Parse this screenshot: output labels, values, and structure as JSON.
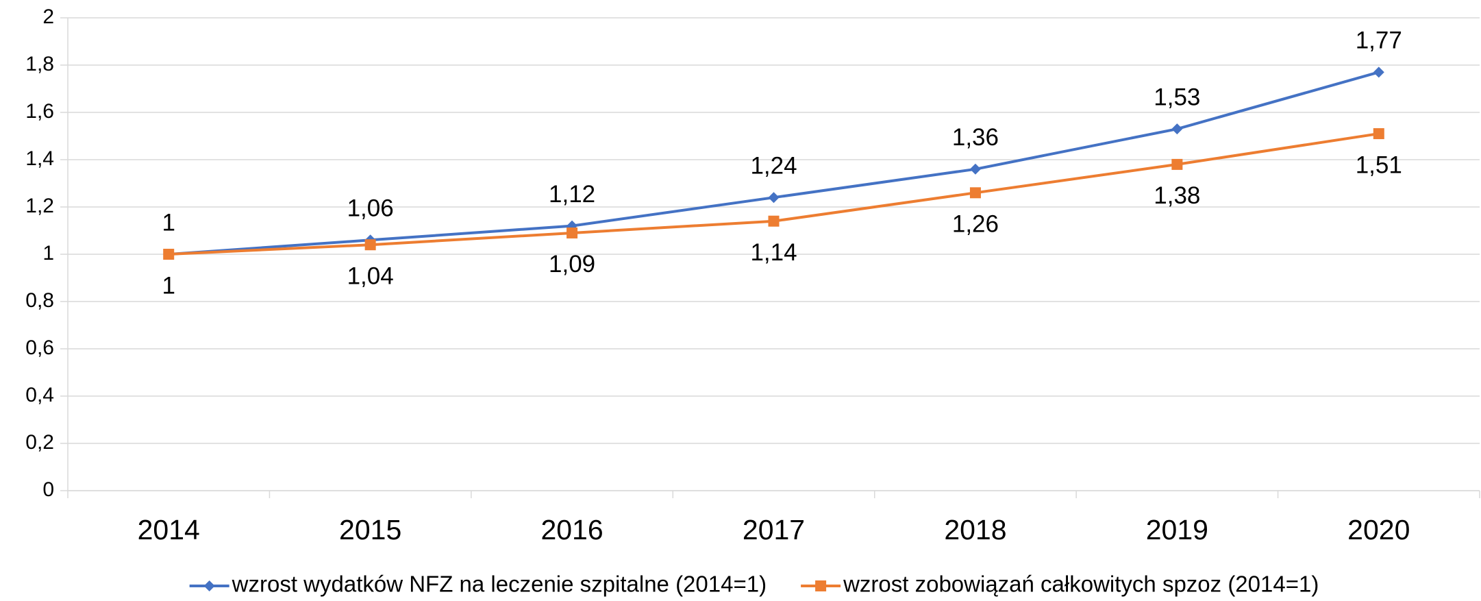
{
  "chart_data": {
    "type": "line",
    "categories": [
      "2014",
      "2015",
      "2016",
      "2017",
      "2018",
      "2019",
      "2020"
    ],
    "series": [
      {
        "name": "wzrost wydatków NFZ na leczenie szpitalne (2014=1)",
        "color": "#4472c4",
        "marker": "diamond",
        "values": [
          1,
          1.06,
          1.12,
          1.24,
          1.36,
          1.53,
          1.77
        ],
        "value_labels": [
          "1",
          "1,06",
          "1,12",
          "1,24",
          "1,36",
          "1,53",
          "1,77"
        ]
      },
      {
        "name": "wzrost zobowiązań całkowitych spzoz (2014=1)",
        "color": "#ed7d31",
        "marker": "square",
        "values": [
          1,
          1.04,
          1.09,
          1.14,
          1.26,
          1.38,
          1.51
        ],
        "value_labels": [
          "1",
          "1,04",
          "1,09",
          "1,14",
          "1,26",
          "1,38",
          "1,51"
        ]
      }
    ],
    "ylim": [
      0,
      2
    ],
    "yticks": [
      0,
      {
        "value": 0.2,
        "label": "0,2"
      },
      {
        "value": 0.4,
        "label": "0,4"
      },
      {
        "value": 0.6,
        "label": "0,6"
      },
      {
        "value": 0.8,
        "label": "0,8"
      },
      1,
      {
        "value": 1.2,
        "label": "1,2"
      },
      {
        "value": 1.4,
        "label": "1,4"
      },
      {
        "value": 1.6,
        "label": "1,6"
      },
      {
        "value": 1.8,
        "label": "1,8"
      },
      2
    ],
    "grid": true,
    "legend": "bottom"
  }
}
